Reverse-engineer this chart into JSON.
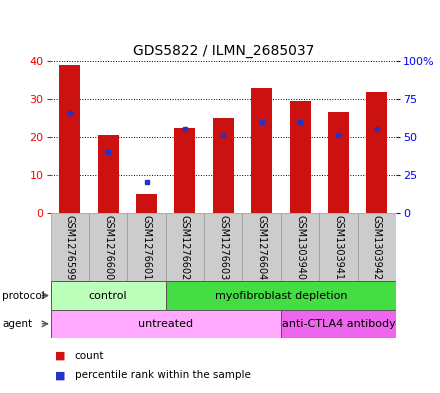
{
  "title": "GDS5822 / ILMN_2685037",
  "samples": [
    "GSM1276599",
    "GSM1276600",
    "GSM1276601",
    "GSM1276602",
    "GSM1276603",
    "GSM1276604",
    "GSM1303940",
    "GSM1303941",
    "GSM1303942"
  ],
  "count_values": [
    39,
    20.5,
    5,
    22.5,
    25,
    33,
    29.5,
    26.5,
    32
  ],
  "percentile_values": [
    66,
    40,
    20,
    55,
    51,
    60,
    60,
    51,
    55
  ],
  "left_ylim": [
    0,
    40
  ],
  "right_ylim": [
    0,
    100
  ],
  "left_yticks": [
    0,
    10,
    20,
    30,
    40
  ],
  "right_yticks": [
    0,
    25,
    50,
    75,
    100
  ],
  "right_yticklabels": [
    "0",
    "25",
    "50",
    "75",
    "100%"
  ],
  "bar_color": "#cc1111",
  "percentile_color": "#2233cc",
  "protocol_groups": [
    {
      "label": "control",
      "start": 0,
      "end": 3,
      "color": "#bbffbb"
    },
    {
      "label": "myofibroblast depletion",
      "start": 3,
      "end": 9,
      "color": "#44dd44"
    }
  ],
  "agent_groups": [
    {
      "label": "untreated",
      "start": 0,
      "end": 6,
      "color": "#ffaaff"
    },
    {
      "label": "anti-CTLA4 antibody",
      "start": 6,
      "end": 9,
      "color": "#ee66ee"
    }
  ],
  "legend_count_label": "count",
  "legend_percentile_label": "percentile rank within the sample",
  "label_bg_color": "#cccccc",
  "plot_bg": "#ffffff"
}
